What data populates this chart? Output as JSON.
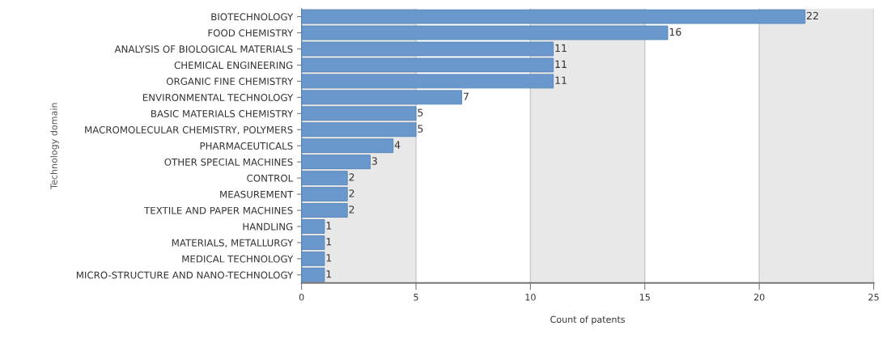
{
  "chart_data": {
    "type": "bar",
    "orientation": "horizontal",
    "xlabel": "Count of patents",
    "ylabel": "Technology domain",
    "categories": [
      "BIOTECHNOLOGY",
      "FOOD CHEMISTRY",
      "ANALYSIS OF BIOLOGICAL MATERIALS",
      "CHEMICAL ENGINEERING",
      "ORGANIC FINE CHEMISTRY",
      "ENVIRONMENTAL TECHNOLOGY",
      "BASIC MATERIALS CHEMISTRY",
      "MACROMOLECULAR CHEMISTRY, POLYMERS",
      "PHARMACEUTICALS",
      "OTHER SPECIAL MACHINES",
      "CONTROL",
      "MEASUREMENT",
      "TEXTILE AND PAPER MACHINES",
      "HANDLING",
      "MATERIALS, METALLURGY",
      "MEDICAL TECHNOLOGY",
      "MICRO-STRUCTURE AND NANO-TECHNOLOGY"
    ],
    "values": [
      22,
      16,
      11,
      11,
      11,
      7,
      5,
      5,
      4,
      3,
      2,
      2,
      2,
      1,
      1,
      1,
      1
    ],
    "color": "#6a98cc",
    "data_labels": true,
    "xlim": [
      0,
      25
    ],
    "xticks": [
      0,
      5,
      10,
      15,
      20,
      25
    ],
    "grid": "x",
    "bands": [
      {
        "axis": "x",
        "from": 0,
        "to": 5,
        "color": "#e8e8e8"
      },
      {
        "axis": "x",
        "from": 10,
        "to": 15,
        "color": "#e8e8e8"
      },
      {
        "axis": "x",
        "from": 20,
        "to": 25,
        "color": "#e8e8e8"
      }
    ]
  }
}
